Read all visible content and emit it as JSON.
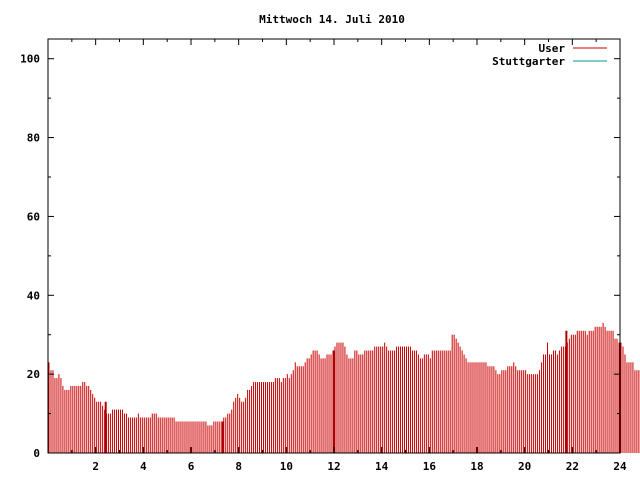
{
  "chart_data": {
    "type": "bar",
    "title": "Mittwoch 14. Juli 2010",
    "xlabel": "",
    "ylabel": "",
    "xlim": [
      0,
      24
    ],
    "ylim": [
      0,
      105
    ],
    "x_ticks": [
      2,
      4,
      6,
      8,
      10,
      12,
      14,
      16,
      18,
      20,
      22,
      24
    ],
    "y_ticks": [
      0,
      20,
      40,
      60,
      80,
      100
    ],
    "grid": false,
    "legend_position": "top-right",
    "bin_minutes": 5,
    "series": [
      {
        "name": "User",
        "color": "#cc0000",
        "values": [
          23,
          21,
          21,
          19,
          19,
          20,
          19,
          17,
          16,
          16,
          16,
          17,
          17,
          17,
          17,
          17,
          17,
          18,
          18,
          17,
          17,
          16,
          15,
          14,
          13,
          13,
          13,
          12,
          11,
          10,
          10,
          10,
          11,
          11,
          11,
          11,
          11,
          11,
          10,
          10,
          9,
          9,
          9,
          9,
          9,
          10,
          9,
          9,
          9,
          9,
          9,
          9,
          10,
          10,
          10,
          9,
          9,
          9,
          9,
          9,
          9,
          9,
          9,
          9,
          8,
          8,
          8,
          8,
          8,
          8,
          8,
          8,
          8,
          8,
          8,
          8,
          8,
          8,
          8,
          8,
          7,
          7,
          7,
          8,
          8,
          8,
          8,
          8,
          9,
          9,
          10,
          10,
          11,
          13,
          14,
          15,
          14,
          13,
          13,
          14,
          16,
          16,
          17,
          18,
          18,
          18,
          18,
          18,
          18,
          18,
          18,
          18,
          18,
          18,
          19,
          19,
          19,
          18,
          19,
          19,
          20,
          19,
          20,
          21,
          23,
          22,
          22,
          22,
          22,
          23,
          24,
          24,
          25,
          26,
          26,
          26,
          25,
          24,
          24,
          24,
          25,
          25,
          25,
          26,
          27,
          28,
          28,
          28,
          28,
          27,
          25,
          24,
          24,
          24,
          26,
          26,
          25,
          25,
          25,
          26,
          26,
          26,
          26,
          26,
          27,
          27,
          27,
          27,
          27,
          28,
          27,
          26,
          26,
          26,
          26,
          27,
          27,
          27,
          27,
          27,
          27,
          27,
          27,
          26,
          26,
          26,
          25,
          24,
          24,
          25,
          25,
          25,
          24,
          26,
          26,
          26,
          26,
          26,
          26,
          26,
          26,
          26,
          26,
          30,
          30,
          29,
          28,
          27,
          26,
          25,
          24,
          23,
          23,
          23,
          23,
          23,
          23,
          23,
          23,
          23,
          23,
          22,
          22,
          22,
          22,
          21,
          20,
          20,
          21,
          21,
          21,
          22,
          22,
          22,
          23,
          22,
          21,
          21,
          21,
          21,
          21,
          20,
          20,
          20,
          20,
          20,
          20,
          21,
          23,
          25,
          25,
          28,
          25,
          25,
          26,
          26,
          25,
          26,
          27,
          27,
          27,
          28,
          29,
          30,
          30,
          30,
          31,
          31,
          31,
          31,
          31,
          30,
          31,
          31,
          31,
          32,
          32,
          32,
          32,
          33,
          32,
          31,
          31,
          31,
          31,
          29,
          29,
          28,
          28,
          27,
          25,
          23,
          23,
          23,
          23,
          21,
          21,
          21
        ],
        "spikes": [
          {
            "x": 2.42,
            "value": 13
          },
          {
            "x": 7.33,
            "value": 8
          },
          {
            "x": 12.0,
            "value": 26
          },
          {
            "x": 21.75,
            "value": 31
          }
        ]
      },
      {
        "name": "Stuttgarter",
        "color": "#009999",
        "values": []
      }
    ]
  }
}
